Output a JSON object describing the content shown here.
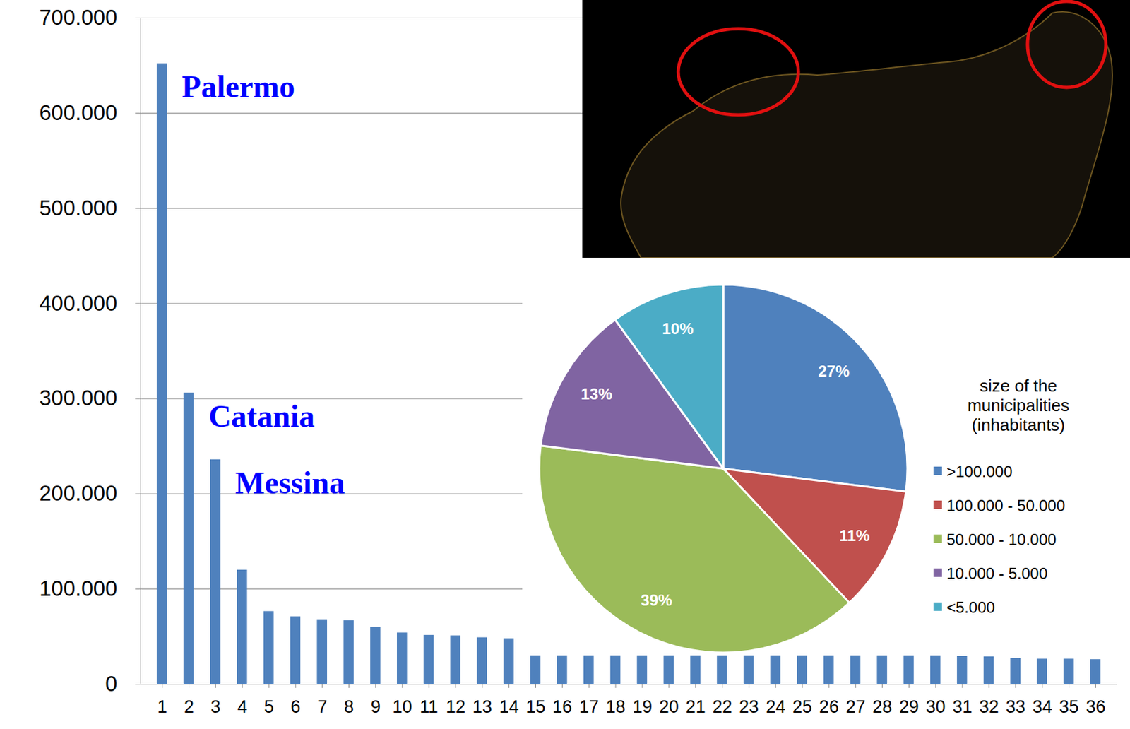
{
  "chart_data": [
    {
      "type": "bar",
      "categories": [
        "1",
        "2",
        "3",
        "4",
        "5",
        "6",
        "7",
        "8",
        "9",
        "10",
        "11",
        "12",
        "13",
        "14",
        "15",
        "16",
        "17",
        "18",
        "19",
        "20",
        "21",
        "22",
        "23",
        "24",
        "25",
        "26",
        "27",
        "28",
        "29",
        "30",
        "31",
        "32",
        "33",
        "34",
        "35",
        "36"
      ],
      "values": [
        652000,
        306000,
        236000,
        120000,
        76500,
        71000,
        68000,
        67000,
        60000,
        54000,
        51500,
        51000,
        49000,
        48000,
        30000,
        30000,
        30000,
        30000,
        30000,
        30000,
        30000,
        30000,
        30000,
        30000,
        30000,
        30000,
        30000,
        30000,
        30000,
        30000,
        29500,
        29000,
        27500,
        26500,
        26500,
        26000
      ],
      "color": "#4f81bd",
      "ylim": [
        0,
        700000
      ],
      "yticks": [
        0,
        {
          "value": 100000,
          "label": "100.000"
        },
        {
          "value": 200000,
          "label": "200.000"
        },
        {
          "value": 300000,
          "label": "300.000"
        },
        {
          "value": 400000,
          "label": "400.000"
        },
        {
          "value": 500000,
          "label": "500.000"
        },
        {
          "value": 600000,
          "label": "600.000"
        },
        {
          "value": 700000,
          "label": "700.000"
        }
      ],
      "grid": true,
      "annotations": [
        {
          "text": "Palermo",
          "category": "1"
        },
        {
          "text": "Catania",
          "category": "2"
        },
        {
          "text": "Messina",
          "category": "3"
        }
      ]
    },
    {
      "type": "pie",
      "legend_title": "size of the municipalities (inhabitants)",
      "categories": [
        ">100.000",
        "100.000 - 50.000",
        "50.000 - 10.000",
        "10.000 - 5.000",
        "<5.000"
      ],
      "values": [
        27,
        11,
        39,
        13,
        10
      ],
      "value_labels": [
        "27%",
        "11%",
        "39%",
        "13%",
        "10%"
      ],
      "colors": [
        "#4f81bd",
        "#c0504d",
        "#9bbb59",
        "#8064a2",
        "#4bacc6"
      ],
      "data_labels": true,
      "legend": "right"
    }
  ]
}
